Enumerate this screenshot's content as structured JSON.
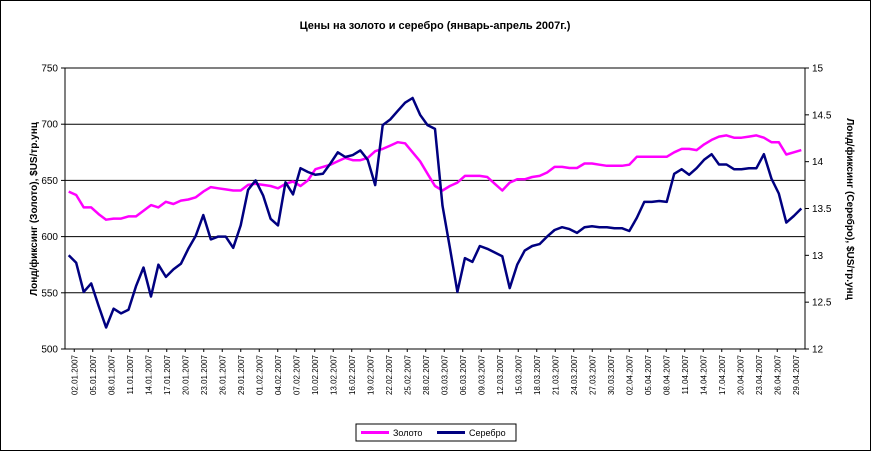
{
  "chart_data": {
    "type": "line",
    "title": "Цены на золото и серебро (январь-апрель 2007г.)",
    "ylabel_left": "Лонд/фиксинг (Золото), $US/тр.унц",
    "ylabel_right": "Лонд/фиксинг (Серебро), $US/тр.унц",
    "ylim_left": [
      500,
      750
    ],
    "ylim_right": [
      12,
      15
    ],
    "yticks_left": [
      "750",
      "700",
      "650",
      "600",
      "550",
      "500"
    ],
    "yticks_right": [
      "15",
      "14.5",
      "14",
      "13.5",
      "13",
      "12.5",
      "12"
    ],
    "grid": true,
    "legend_position": "bottom",
    "x_tick_labels": [
      "02.01.2007",
      "05.01.2007",
      "08.01.2007",
      "11.01.2007",
      "14.01.2007",
      "17.01.2007",
      "20.01.2007",
      "23.01.2007",
      "26.01.2007",
      "29.01.2007",
      "01.02.2007",
      "04.02.2007",
      "07.02.2007",
      "10.02.2007",
      "13.02.2007",
      "16.02.2007",
      "19.02.2007",
      "22.02.2007",
      "25.02.2007",
      "28.02.2007",
      "03.03.2007",
      "06.03.2007",
      "09.03.2007",
      "12.03.2007",
      "15.03.2007",
      "18.03.2007",
      "21.03.2007",
      "24.03.2007",
      "27.03.2007",
      "30.03.2007",
      "02.04.2007",
      "05.04.2007",
      "08.04.2007",
      "11.04.2007",
      "14.04.2007",
      "17.04.2007",
      "20.04.2007",
      "23.04.2007",
      "26.04.2007",
      "29.04.2007"
    ],
    "series": [
      {
        "name": "Золото",
        "color": "#ff00ff",
        "axis": "left",
        "values": [
          640,
          637,
          626,
          626,
          620,
          615,
          616,
          616,
          618,
          618,
          623,
          628,
          626,
          631,
          629,
          632,
          633,
          635,
          640,
          644,
          643,
          642,
          641,
          641,
          646,
          647,
          646,
          645,
          643,
          647,
          649,
          645,
          650,
          660,
          662,
          664,
          667,
          670,
          668,
          668,
          670,
          676,
          678,
          681,
          684,
          683,
          675,
          667,
          656,
          645,
          641,
          645,
          648,
          654,
          654,
          654,
          653,
          647,
          641,
          648,
          651,
          651,
          653,
          654,
          657,
          662,
          662,
          661,
          661,
          665,
          665,
          664,
          663,
          663,
          663,
          664,
          671,
          671,
          671,
          671,
          671,
          675,
          678,
          678,
          677,
          682,
          686,
          689,
          690,
          688,
          688,
          689,
          690,
          688,
          684,
          684,
          673,
          675,
          677
        ]
      },
      {
        "name": "Серебро",
        "color": "#000080",
        "axis": "right",
        "values": [
          13,
          12.92,
          12.61,
          12.7,
          12.46,
          12.23,
          12.43,
          12.38,
          12.42,
          12.67,
          12.87,
          12.56,
          12.9,
          12.77,
          12.85,
          12.91,
          13.07,
          13.21,
          13.43,
          13.17,
          13.2,
          13.2,
          13.08,
          13.32,
          13.7,
          13.8,
          13.64,
          13.39,
          13.32,
          13.78,
          13.65,
          13.93,
          13.89,
          13.86,
          13.87,
          13.98,
          14.1,
          14.05,
          14.07,
          14.12,
          14.02,
          13.75,
          14.39,
          14.45,
          14.54,
          14.63,
          14.68,
          14.5,
          14.39,
          14.35,
          13.53,
          13.08,
          12.61,
          12.97,
          12.93,
          13.1,
          13.07,
          13.03,
          12.99,
          12.65,
          12.9,
          13.05,
          13.1,
          13.12,
          13.2,
          13.27,
          13.3,
          13.28,
          13.24,
          13.3,
          13.31,
          13.3,
          13.3,
          13.29,
          13.29,
          13.26,
          13.4,
          13.57,
          13.57,
          13.58,
          13.57,
          13.87,
          13.92,
          13.86,
          13.93,
          14.02,
          14.08,
          13.97,
          13.97,
          13.92,
          13.92,
          13.93,
          13.93,
          14.08,
          13.82,
          13.66,
          13.35,
          13.42,
          13.5
        ]
      }
    ]
  }
}
